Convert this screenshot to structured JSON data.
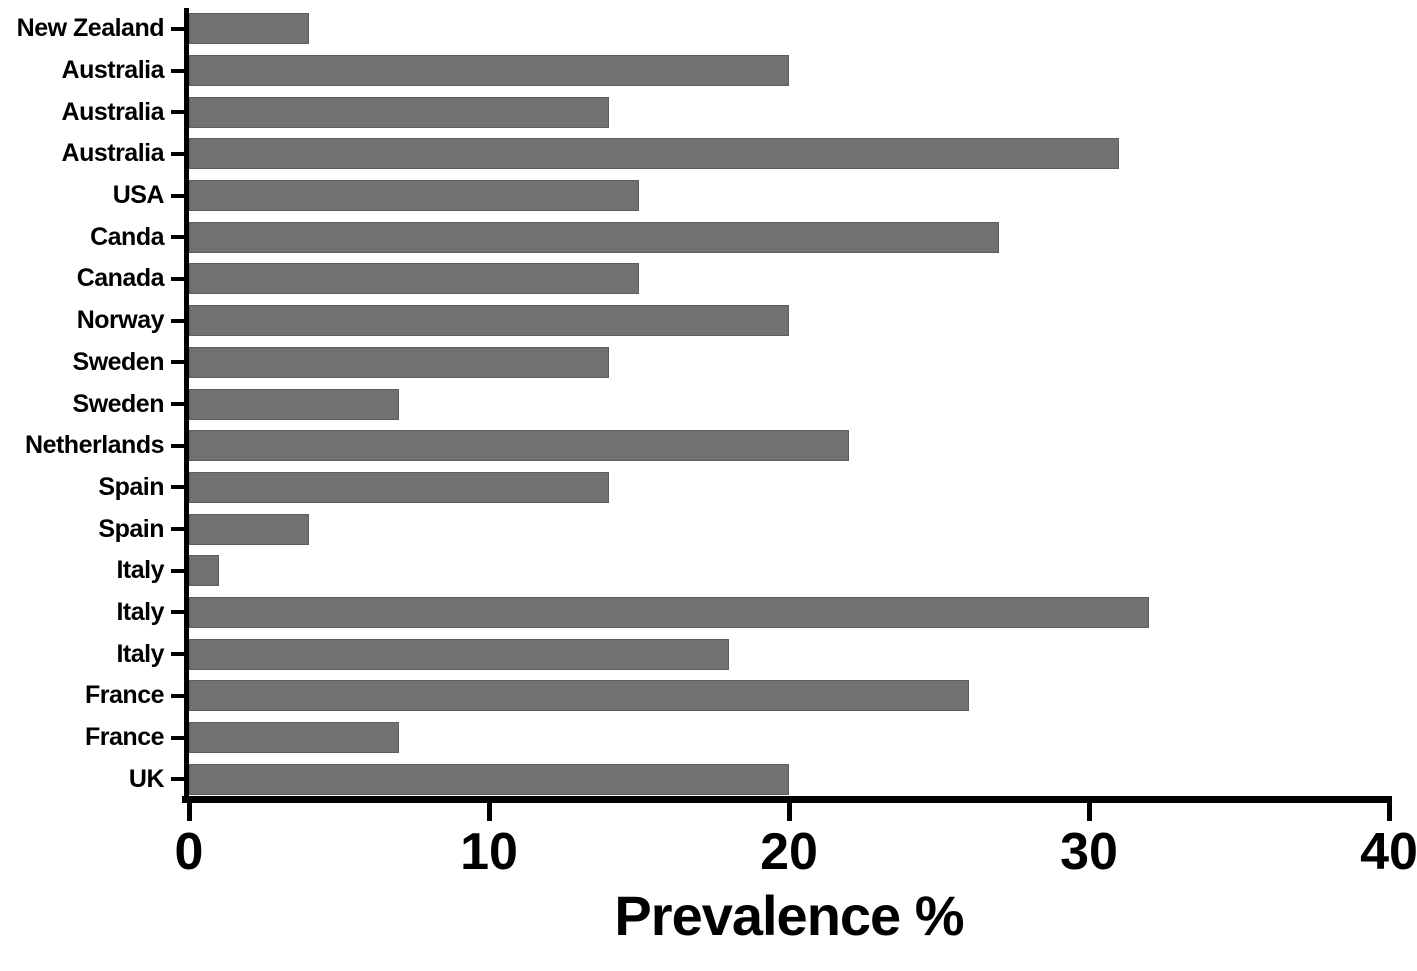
{
  "chart_data": {
    "type": "bar",
    "orientation": "horizontal",
    "title": "",
    "xlabel": "Prevalence %",
    "ylabel": "",
    "categories": [
      "New Zealand",
      "Australia",
      "Australia",
      "Australia",
      "USA",
      "Canda",
      "Canada",
      "Norway",
      "Sweden",
      "Sweden",
      "Netherlands",
      "Spain",
      "Spain",
      "Italy",
      "Italy",
      "Italy",
      "France",
      "France",
      "UK"
    ],
    "values": [
      4,
      20,
      14,
      31,
      15,
      27,
      15,
      20,
      14,
      7,
      22,
      14,
      4,
      1,
      32,
      18,
      26,
      7,
      20
    ],
    "xlim": [
      0,
      40
    ],
    "x_ticks": [
      "0",
      "10",
      "20",
      "30",
      "40"
    ],
    "grid": false,
    "legend": false,
    "bar_color": "#717171",
    "bar_edge_color": "#5e5e5e",
    "axis_color": "#000000",
    "background": "#ffffff"
  }
}
